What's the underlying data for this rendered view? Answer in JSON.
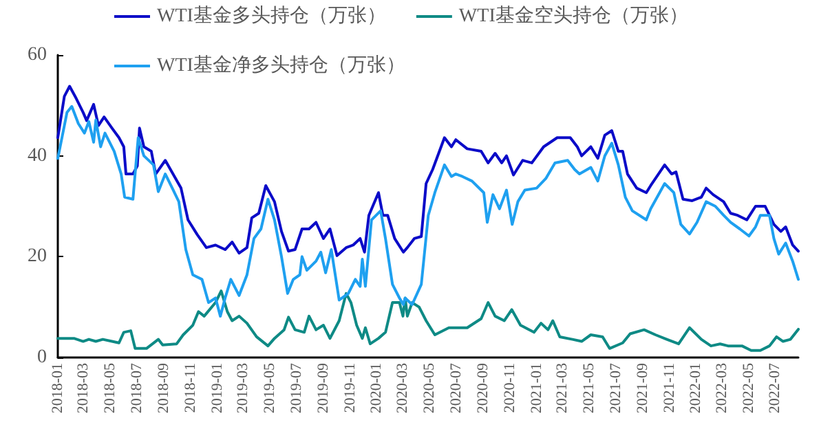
{
  "chart_data": {
    "type": "line",
    "legend": "top left",
    "grid": false,
    "marker": "none",
    "line_style": "solid",
    "xlim": [
      "2018-01-01",
      "2022-08-23"
    ],
    "ylim": [
      0,
      60
    ],
    "yticks": [
      0,
      20,
      40,
      60
    ],
    "xticks": [
      "2018-01",
      "2018-03",
      "2018-05",
      "2018-07",
      "2018-09",
      "2018-11",
      "2019-01",
      "2019-03",
      "2019-05",
      "2019-07",
      "2019-09",
      "2019-11",
      "2020-01",
      "2020-03",
      "2020-05",
      "2020-07",
      "2020-09",
      "2020-11",
      "2021-01",
      "2021-03",
      "2021-05",
      "2021-07",
      "2021-09",
      "2021-11",
      "2022-01",
      "2022-03",
      "2022-05",
      "2022-07"
    ],
    "series": [
      {
        "name": "WTI基金多头持仓（万张）",
        "color": "#0b0bc8",
        "x": [
          "2018-01-01",
          "2018-01-16",
          "2018-01-28",
          "2018-02-12",
          "2018-02-28",
          "2018-03-08",
          "2018-03-24",
          "2018-04-04",
          "2018-04-17",
          "2018-05-05",
          "2018-05-21",
          "2018-06-01",
          "2018-06-06",
          "2018-06-22",
          "2018-07-02",
          "2018-07-07",
          "2018-07-17",
          "2018-08-03",
          "2018-08-13",
          "2018-09-04",
          "2018-09-25",
          "2018-10-10",
          "2018-10-26",
          "2018-11-16",
          "2018-12-07",
          "2018-12-28",
          "2019-01-19",
          "2019-02-04",
          "2019-02-20",
          "2019-03-10",
          "2019-03-21",
          "2019-04-06",
          "2019-04-22",
          "2019-05-12",
          "2019-05-28",
          "2019-06-13",
          "2019-06-28",
          "2019-07-14",
          "2019-07-30",
          "2019-08-15",
          "2019-09-01",
          "2019-09-16",
          "2019-10-02",
          "2019-10-23",
          "2019-11-08",
          "2019-11-24",
          "2019-12-04",
          "2019-12-14",
          "2020-01-05",
          "2020-01-15",
          "2020-01-26",
          "2020-02-11",
          "2020-03-02",
          "2020-03-11",
          "2020-03-27",
          "2020-04-12",
          "2020-04-23",
          "2020-05-08",
          "2020-06-04",
          "2020-06-20",
          "2020-06-30",
          "2020-07-26",
          "2020-08-27",
          "2020-09-12",
          "2020-09-28",
          "2020-10-13",
          "2020-10-24",
          "2020-11-09",
          "2020-11-30",
          "2020-12-21",
          "2021-01-17",
          "2021-02-17",
          "2021-03-19",
          "2021-04-04",
          "2021-04-14",
          "2021-05-05",
          "2021-05-21",
          "2021-06-06",
          "2021-06-22",
          "2021-07-07",
          "2021-07-17",
          "2021-07-28",
          "2021-08-18",
          "2021-09-09",
          "2021-09-19",
          "2021-10-21",
          "2021-11-06",
          "2021-11-16",
          "2021-12-02",
          "2021-12-23",
          "2022-01-13",
          "2022-01-24",
          "2022-02-09",
          "2022-03-05",
          "2022-03-21",
          "2022-04-06",
          "2022-04-27",
          "2022-05-17",
          "2022-06-08",
          "2022-06-18",
          "2022-06-28",
          "2022-07-14",
          "2022-07-25",
          "2022-08-10",
          "2022-08-23"
        ],
        "values": [
          43.6,
          51.8,
          53.8,
          51.4,
          48.6,
          47,
          50.2,
          46,
          47.7,
          45.5,
          43.6,
          41.8,
          36.4,
          36.4,
          38,
          45.5,
          41.8,
          40.9,
          36.4,
          39.1,
          35.9,
          33.6,
          27.3,
          24.4,
          21.8,
          22.3,
          21.4,
          22.9,
          20.7,
          21.8,
          27.7,
          28.6,
          34.1,
          30.9,
          25,
          21.1,
          21.4,
          25.5,
          25.5,
          26.8,
          23.6,
          25.5,
          20.2,
          21.8,
          22.3,
          23.6,
          20.9,
          28.2,
          32.7,
          28.2,
          28.2,
          23.6,
          20.9,
          21.8,
          23.6,
          24,
          34.5,
          37.3,
          43.6,
          41.8,
          43.2,
          41.4,
          40.9,
          38.6,
          40.5,
          38.6,
          40,
          36.2,
          39.1,
          38.6,
          41.8,
          43.6,
          43.6,
          41.8,
          40,
          41.8,
          39.5,
          44.1,
          45,
          40.9,
          40.9,
          36.4,
          33.6,
          32.7,
          34.1,
          38.2,
          36.4,
          36.8,
          31.4,
          31.1,
          31.8,
          33.6,
          32.3,
          30.9,
          28.6,
          28.2,
          27.3,
          30,
          30,
          28.2,
          26.4,
          25,
          25.9,
          22.3,
          21.1
        ]
      },
      {
        "name": "WTI基金空头持仓（万张）",
        "color": "#0e8a85",
        "x": [
          "2018-01-01",
          "2018-02-07",
          "2018-02-28",
          "2018-03-13",
          "2018-03-29",
          "2018-04-14",
          "2018-05-05",
          "2018-05-21",
          "2018-06-01",
          "2018-06-17",
          "2018-06-27",
          "2018-07-23",
          "2018-08-19",
          "2018-08-29",
          "2018-09-30",
          "2018-10-15",
          "2018-11-06",
          "2018-11-19",
          "2018-12-02",
          "2018-12-28",
          "2019-01-10",
          "2019-01-24",
          "2019-02-04",
          "2019-02-20",
          "2019-03-10",
          "2019-04-01",
          "2019-04-27",
          "2019-05-12",
          "2019-06-03",
          "2019-06-13",
          "2019-06-28",
          "2019-07-19",
          "2019-07-30",
          "2019-08-15",
          "2019-09-01",
          "2019-09-16",
          "2019-10-07",
          "2019-10-23",
          "2019-11-03",
          "2019-11-16",
          "2019-11-29",
          "2019-12-06",
          "2019-12-17",
          "2020-01-05",
          "2020-01-21",
          "2020-02-06",
          "2020-02-22",
          "2020-03-01",
          "2020-03-06",
          "2020-03-11",
          "2020-03-22",
          "2020-04-07",
          "2020-04-23",
          "2020-05-13",
          "2020-06-14",
          "2020-07-26",
          "2020-08-27",
          "2020-09-12",
          "2020-09-28",
          "2020-10-19",
          "2020-11-05",
          "2020-11-25",
          "2020-12-26",
          "2021-01-11",
          "2021-01-27",
          "2021-02-07",
          "2021-02-23",
          "2021-03-24",
          "2021-04-14",
          "2021-05-05",
          "2021-06-01",
          "2021-06-17",
          "2021-07-17",
          "2021-08-03",
          "2021-09-04",
          "2021-09-30",
          "2021-10-26",
          "2021-11-22",
          "2021-12-17",
          "2022-01-13",
          "2022-02-04",
          "2022-02-25",
          "2022-03-15",
          "2022-04-16",
          "2022-05-07",
          "2022-05-28",
          "2022-06-18",
          "2022-07-04",
          "2022-07-19",
          "2022-08-05",
          "2022-08-23"
        ],
        "values": [
          3.8,
          3.8,
          3.2,
          3.6,
          3.2,
          3.6,
          3.2,
          2.9,
          5,
          5.3,
          1.8,
          1.8,
          3.6,
          2.5,
          2.7,
          4.5,
          6.4,
          9.1,
          8.2,
          10.9,
          13.2,
          9.1,
          7.3,
          8.2,
          6.8,
          4.1,
          2.3,
          3.8,
          5.5,
          8,
          5.5,
          5,
          8.2,
          5.5,
          6.4,
          3.8,
          7.3,
          12.7,
          10.9,
          6.4,
          3.8,
          5.9,
          2.7,
          3.8,
          5,
          10.9,
          10.9,
          8.2,
          11.8,
          8.2,
          10.9,
          10,
          7.3,
          4.5,
          5.9,
          5.9,
          7.7,
          10.9,
          8.2,
          7.3,
          9.5,
          6.4,
          5,
          6.8,
          5.5,
          7.3,
          4.1,
          3.6,
          3.2,
          4.5,
          4.1,
          1.8,
          2.9,
          4.7,
          5.5,
          4.5,
          3.6,
          2.7,
          5.9,
          3.6,
          2.3,
          2.7,
          2.3,
          2.3,
          1.4,
          1.4,
          2.3,
          4.1,
          3.2,
          3.6,
          5.6
        ]
      },
      {
        "name": "WTI基金净多头持仓（万张）",
        "color": "#1ea0f0",
        "x": [
          "2018-01-01",
          "2018-01-22",
          "2018-02-02",
          "2018-02-17",
          "2018-03-03",
          "2018-03-13",
          "2018-03-24",
          "2018-03-29",
          "2018-04-09",
          "2018-04-19",
          "2018-05-10",
          "2018-05-26",
          "2018-06-03",
          "2018-06-22",
          "2018-07-04",
          "2018-07-17",
          "2018-08-08",
          "2018-08-19",
          "2018-09-04",
          "2018-09-20",
          "2018-10-05",
          "2018-10-21",
          "2018-11-06",
          "2018-11-27",
          "2018-12-12",
          "2018-12-28",
          "2019-01-08",
          "2019-01-19",
          "2019-02-01",
          "2019-02-20",
          "2019-03-10",
          "2019-03-26",
          "2019-04-11",
          "2019-04-27",
          "2019-05-12",
          "2019-05-28",
          "2019-06-11",
          "2019-06-24",
          "2019-07-09",
          "2019-07-14",
          "2019-07-25",
          "2019-08-15",
          "2019-08-26",
          "2019-09-06",
          "2019-09-19",
          "2019-10-07",
          "2019-10-28",
          "2019-11-13",
          "2019-11-24",
          "2019-11-29",
          "2019-12-06",
          "2019-12-20",
          "2020-01-10",
          "2020-01-21",
          "2020-02-06",
          "2020-02-22",
          "2020-03-02",
          "2020-03-06",
          "2020-03-22",
          "2020-04-12",
          "2020-04-28",
          "2020-05-13",
          "2020-06-04",
          "2020-06-20",
          "2020-06-30",
          "2020-07-15",
          "2020-08-06",
          "2020-09-02",
          "2020-09-10",
          "2020-09-23",
          "2020-10-08",
          "2020-10-24",
          "2020-11-06",
          "2020-11-19",
          "2020-12-05",
          "2021-01-01",
          "2021-01-22",
          "2021-02-12",
          "2021-03-13",
          "2021-03-29",
          "2021-04-09",
          "2021-05-05",
          "2021-05-21",
          "2021-06-06",
          "2021-06-22",
          "2021-07-07",
          "2021-07-23",
          "2021-08-08",
          "2021-09-09",
          "2021-09-19",
          "2021-10-21",
          "2021-11-11",
          "2021-11-27",
          "2021-12-17",
          "2022-01-03",
          "2022-01-24",
          "2022-02-14",
          "2022-03-05",
          "2022-03-21",
          "2022-04-11",
          "2022-05-02",
          "2022-05-17",
          "2022-05-28",
          "2022-06-18",
          "2022-06-28",
          "2022-07-09",
          "2022-07-25",
          "2022-08-10",
          "2022-08-23"
        ],
        "values": [
          39.5,
          48.6,
          49.8,
          46.4,
          44.5,
          46.8,
          42.7,
          47.1,
          41.8,
          44.5,
          40.9,
          36.4,
          31.8,
          31.4,
          43.6,
          40,
          38.2,
          32.9,
          36.4,
          33.6,
          30.9,
          21.4,
          16.4,
          15.5,
          10.9,
          11.8,
          8.2,
          11.8,
          15.5,
          12.3,
          16.4,
          23.6,
          25.5,
          31.4,
          27.3,
          20,
          12.7,
          15.5,
          16.4,
          20,
          17.3,
          19.1,
          20.9,
          16.8,
          21.4,
          11.4,
          12.7,
          15.5,
          14.1,
          19.5,
          14.1,
          27.3,
          29.1,
          23.6,
          14.5,
          11.8,
          10.5,
          11.8,
          10.5,
          14.5,
          28.2,
          32.7,
          38.2,
          35.9,
          36.4,
          35.9,
          35,
          32.7,
          26.8,
          32.3,
          29.5,
          33.2,
          26.4,
          30.9,
          33.2,
          33.6,
          35.5,
          38.6,
          39.1,
          37.3,
          36.4,
          37.7,
          35,
          40,
          42.5,
          38.2,
          31.8,
          29.1,
          27.3,
          29.5,
          34.5,
          32.7,
          26.4,
          24.5,
          26.8,
          30.9,
          30,
          28.2,
          26.8,
          25.5,
          24.1,
          25.9,
          28.2,
          28.2,
          23.6,
          20.5,
          22.7,
          19.1,
          15.5
        ]
      }
    ]
  }
}
